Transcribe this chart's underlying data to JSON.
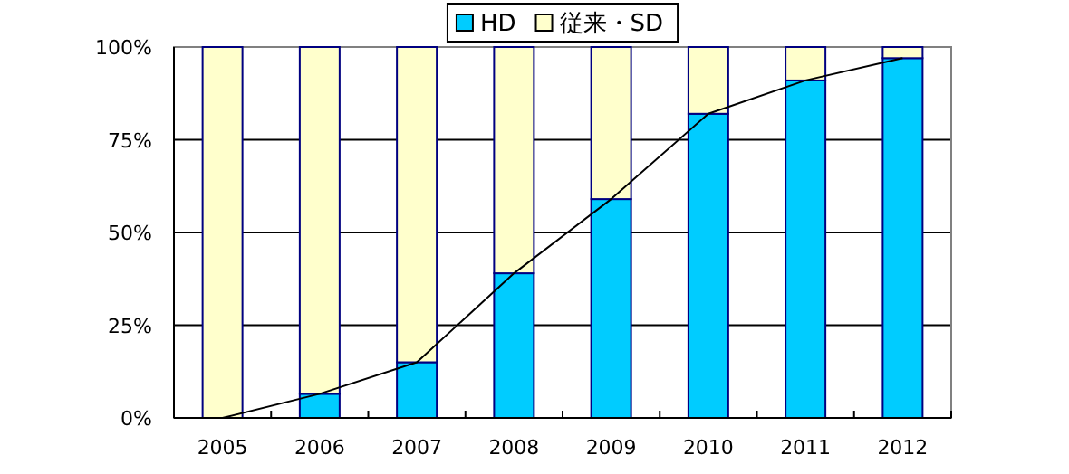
{
  "chart_data": {
    "type": "bar",
    "stacked": true,
    "categories": [
      "2005",
      "2006",
      "2007",
      "2008",
      "2009",
      "2010",
      "2011",
      "2012"
    ],
    "series": [
      {
        "name": "HD",
        "color": "#00ccff",
        "values": [
          0,
          6.5,
          15,
          39,
          59,
          82,
          91,
          97
        ]
      },
      {
        "name": "従来・SD",
        "color": "#ffffcc",
        "values": [
          100,
          93.5,
          85,
          61,
          41,
          18,
          9,
          3
        ]
      },
      {
        "type": "line",
        "color": "#000000",
        "values": [
          0,
          6.5,
          15,
          39,
          59,
          82,
          91,
          97
        ]
      }
    ],
    "ylim": [
      0,
      100
    ],
    "yticks": [
      {
        "value": 0,
        "label": "0%"
      },
      {
        "value": 25,
        "label": "25%"
      },
      {
        "value": 50,
        "label": "50%"
      },
      {
        "value": 75,
        "label": "75%"
      },
      {
        "value": 100,
        "label": "100%"
      }
    ],
    "grid": "y",
    "legend": "top"
  }
}
